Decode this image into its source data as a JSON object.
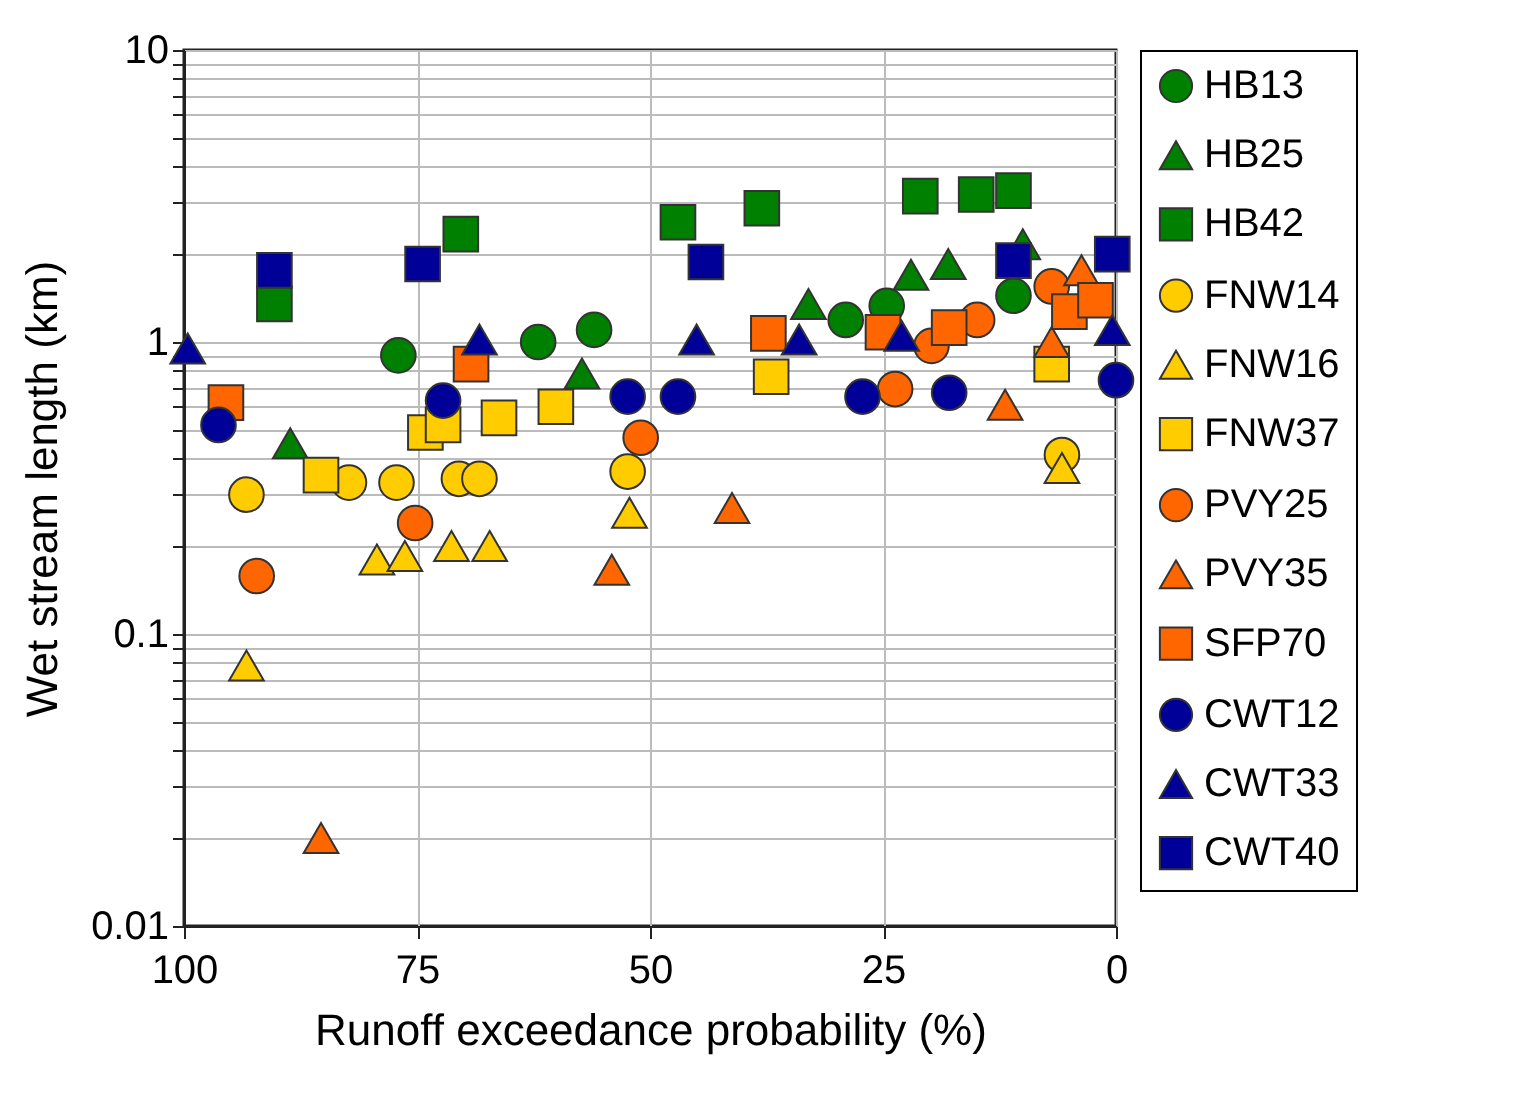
{
  "chart_data": {
    "type": "scatter",
    "xlabel": "Runoff exceedance probability (%)",
    "ylabel": "Wet stream length (km)",
    "xlim": [
      100,
      0
    ],
    "xticks": [
      100,
      75,
      50,
      25,
      0
    ],
    "ylim": [
      0.01,
      10
    ],
    "log": "y",
    "yticks": [
      0.01,
      {
        "value": 0.02,
        "label": null
      },
      {
        "value": 0.03,
        "label": null
      },
      {
        "value": 0.04,
        "label": null
      },
      {
        "value": 0.05,
        "label": null
      },
      {
        "value": 0.06,
        "label": null
      },
      {
        "value": 0.07,
        "label": null
      },
      {
        "value": 0.08,
        "label": null
      },
      {
        "value": 0.09,
        "label": null
      },
      0.1,
      {
        "value": 0.2,
        "label": null
      },
      {
        "value": 0.3,
        "label": null
      },
      {
        "value": 0.4,
        "label": null
      },
      {
        "value": 0.5,
        "label": null
      },
      {
        "value": 0.6,
        "label": null
      },
      {
        "value": 0.7,
        "label": null
      },
      {
        "value": 0.8,
        "label": null
      },
      {
        "value": 0.9,
        "label": null
      },
      1,
      {
        "value": 2,
        "label": null
      },
      {
        "value": 3,
        "label": null
      },
      {
        "value": 4,
        "label": null
      },
      {
        "value": 5,
        "label": null
      },
      {
        "value": 6,
        "label": null
      },
      {
        "value": 7,
        "label": null
      },
      {
        "value": 8,
        "label": null
      },
      {
        "value": 9,
        "label": null
      },
      10
    ],
    "grid": true,
    "legend": "right",
    "series": [
      {
        "name": "HB13",
        "color": "#008000",
        "marker": "circle",
        "x": [
          77,
          62,
          56,
          29,
          24.6,
          11
        ],
        "values": [
          0.9,
          1.0,
          1.1,
          1.19,
          1.33,
          1.44
        ]
      },
      {
        "name": "HB25",
        "color": "#008000",
        "marker": "triangle",
        "x": [
          88.6,
          57.3,
          33,
          22,
          18,
          10
        ],
        "values": [
          0.45,
          0.78,
          1.35,
          1.7,
          1.85,
          2.16
        ]
      },
      {
        "name": "HB42",
        "color": "#008000",
        "marker": "square",
        "x": [
          90.3,
          70.3,
          47,
          38,
          21,
          15,
          11
        ],
        "values": [
          1.35,
          2.34,
          2.57,
          2.87,
          3.16,
          3.2,
          3.3
        ]
      },
      {
        "name": "FNW14",
        "color": "#ffcc00",
        "marker": "circle",
        "x": [
          93.3,
          82.3,
          77.2,
          70.5,
          68.3,
          52.4,
          5.8
        ],
        "values": [
          0.3,
          0.33,
          0.33,
          0.34,
          0.34,
          0.36,
          0.41
        ]
      },
      {
        "name": "FNW16",
        "color": "#ffcc00",
        "marker": "triangle",
        "x": [
          93.3,
          79.3,
          76.3,
          71.3,
          67.2,
          52.2,
          5.8
        ],
        "values": [
          0.078,
          0.18,
          0.185,
          0.2,
          0.2,
          0.26,
          0.37
        ]
      },
      {
        "name": "FNW37",
        "color": "#ffcc00",
        "marker": "square",
        "x": [
          85.3,
          74.1,
          72.2,
          66.2,
          60.1,
          37,
          6.9
        ],
        "values": [
          0.35,
          0.49,
          0.52,
          0.55,
          0.6,
          0.76,
          0.84
        ]
      },
      {
        "name": "PVY25",
        "color": "#ff6600",
        "marker": "circle",
        "x": [
          92.2,
          75.2,
          51,
          23.7,
          19.8,
          14.9,
          6.9
        ],
        "values": [
          0.158,
          0.24,
          0.47,
          0.69,
          0.97,
          1.19,
          1.55
        ]
      },
      {
        "name": "PVY35",
        "color": "#ff6600",
        "marker": "triangle",
        "x": [
          85.3,
          54.1,
          41.2,
          11.9,
          6.9,
          3.7
        ],
        "values": [
          0.02,
          0.166,
          0.27,
          0.61,
          1.0,
          1.76
        ]
      },
      {
        "name": "SFP70",
        "color": "#ff6600",
        "marker": "square",
        "x": [
          95.5,
          69.2,
          37.3,
          25,
          17.9,
          5,
          2.2
        ],
        "values": [
          0.62,
          0.84,
          1.07,
          1.08,
          1.12,
          1.27,
          1.39
        ]
      },
      {
        "name": "CWT12",
        "color": "#000099",
        "marker": "circle",
        "x": [
          96.3,
          72.2,
          52.4,
          47,
          27.2,
          17.9,
          0
        ],
        "values": [
          0.52,
          0.63,
          0.65,
          0.65,
          0.65,
          0.67,
          0.74
        ]
      },
      {
        "name": "CWT33",
        "color": "#000099",
        "marker": "triangle",
        "x": [
          99.6,
          68.3,
          45,
          34,
          23,
          0.4
        ],
        "values": [
          0.95,
          1.02,
          1.02,
          1.02,
          1.05,
          1.1
        ]
      },
      {
        "name": "CWT40",
        "color": "#000099",
        "marker": "square",
        "x": [
          90.3,
          74.4,
          44,
          11,
          0.4
        ],
        "values": [
          1.76,
          1.85,
          1.88,
          1.9,
          2.0
        ]
      }
    ]
  }
}
